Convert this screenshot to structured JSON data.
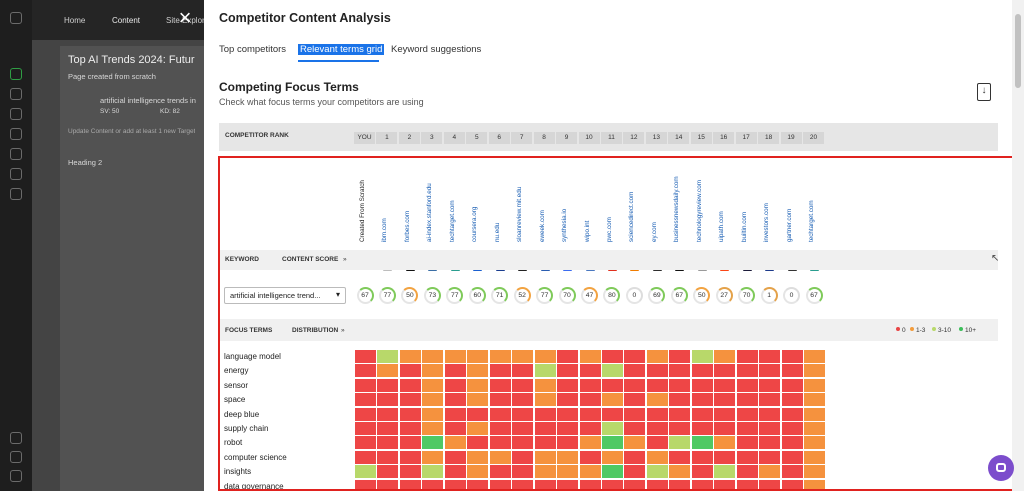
{
  "background": {
    "nav_home": "Home",
    "nav_content": "Content",
    "nav_site": "Site Explor",
    "doc_title": "Top AI Trends 2024: Futur",
    "doc_sub": "Page created from scratch",
    "keyword": "artificial intelligence trends in",
    "sv": "SV: 50",
    "kd": "KD: 82",
    "hint": "Update Content or add at least 1 new Target",
    "heading": "Heading 2"
  },
  "panel": {
    "title": "Competitor Content Analysis",
    "tabs": [
      "Top competitors",
      "Relevant terms grid",
      "Keyword suggestions"
    ],
    "section_title": "Competing Focus Terms",
    "section_sub": "Check what focus terms your competitors are using"
  },
  "rank": {
    "label": "COMPETITOR RANK",
    "cells": [
      "YOU",
      "1",
      "2",
      "3",
      "4",
      "5",
      "6",
      "7",
      "8",
      "9",
      "10",
      "11",
      "12",
      "13",
      "14",
      "15",
      "16",
      "17",
      "18",
      "19",
      "20"
    ]
  },
  "domains": [
    "Created From Scratch",
    "ibm.com",
    "forbes.com",
    "ai-index.stanford.edu",
    "techtarget.com",
    "coursera.org",
    "nu.edu",
    "sloanreview.mit.edu",
    "eweek.com",
    "synthesia.io",
    "wipo.int",
    "pwc.com",
    "sciencedirect.com",
    "ey.com",
    "businessnewsdaily.com",
    "technologyreview.com",
    "uipath.com",
    "builtin.com",
    "investors.com",
    "gartner.com",
    "techtarget.com"
  ],
  "favicons": [
    {
      "icon": "none",
      "color": "#ffffff",
      "glyph": ""
    },
    {
      "icon": "ibm-icon",
      "color": "#bdbdbd",
      "glyph": ""
    },
    {
      "icon": "forbes-icon",
      "color": "#111111",
      "glyph": "F"
    },
    {
      "icon": "stanford-icon",
      "color": "#3a6ea5",
      "glyph": ""
    },
    {
      "icon": "techtarget-icon",
      "color": "#2a9d8f",
      "glyph": ""
    },
    {
      "icon": "coursera-icon",
      "color": "#1a5fd0",
      "glyph": "C"
    },
    {
      "icon": "nu-icon",
      "color": "#1a3d8f",
      "glyph": "nu"
    },
    {
      "icon": "mit-icon",
      "color": "#222222",
      "glyph": ""
    },
    {
      "icon": "eweek-icon",
      "color": "#2a5db0",
      "glyph": ""
    },
    {
      "icon": "synthesia-icon",
      "color": "#3b6cf0",
      "glyph": ""
    },
    {
      "icon": "wipo-icon",
      "color": "#4a78c0",
      "glyph": ""
    },
    {
      "icon": "pwc-icon",
      "color": "#e0301e",
      "glyph": ""
    },
    {
      "icon": "sciencedirect-icon",
      "color": "#f07c00",
      "glyph": "E"
    },
    {
      "icon": "ey-icon",
      "color": "#2e2e2e",
      "glyph": ""
    },
    {
      "icon": "businessnewsdaily-icon",
      "color": "#111111",
      "glyph": ""
    },
    {
      "icon": "technologyreview-icon",
      "color": "#9a9a9a",
      "glyph": ""
    },
    {
      "icon": "uipath-icon",
      "color": "#fa4616",
      "glyph": ""
    },
    {
      "icon": "builtin-icon",
      "color": "#1b1b3a",
      "glyph": ""
    },
    {
      "icon": "investors-icon",
      "color": "#1d3a8a",
      "glyph": ""
    },
    {
      "icon": "gartner-icon",
      "color": "#333333",
      "glyph": "G"
    },
    {
      "icon": "techtarget-icon",
      "color": "#2a9d8f",
      "glyph": ""
    }
  ],
  "keyword_bar": {
    "keyword": "KEYWORD",
    "content_score": "CONTENT SCORE",
    "chevron": "»"
  },
  "keyword_select": "artificial intelligence trend...",
  "scores": [
    67,
    77,
    50,
    73,
    77,
    60,
    71,
    52,
    77,
    70,
    47,
    80,
    0,
    69,
    67,
    50,
    27,
    70,
    1,
    0,
    67
  ],
  "focus_bar": {
    "focus_terms": "FOCUS TERMS",
    "distribution": "DISTRIBUTION",
    "chevron": "»"
  },
  "legend": [
    {
      "label": "0",
      "color": "#e84545"
    },
    {
      "label": "1-3",
      "color": "#f39c3c"
    },
    {
      "label": "3-10",
      "color": "#b8d96a"
    },
    {
      "label": "10+",
      "color": "#3cbf5a"
    }
  ],
  "colors": {
    "0": "#ee4646",
    "1": "#f5923e",
    "2": "#b8d86a",
    "3": "#4fc964"
  },
  "terms": [
    {
      "name": "language model",
      "levels": [
        0,
        2,
        1,
        1,
        1,
        1,
        1,
        1,
        1,
        0,
        1,
        0,
        0,
        1,
        0,
        2,
        1,
        0,
        0,
        0,
        1
      ]
    },
    {
      "name": "energy",
      "levels": [
        0,
        1,
        0,
        1,
        0,
        1,
        0,
        0,
        2,
        0,
        0,
        2,
        0,
        0,
        0,
        0,
        0,
        0,
        0,
        0,
        1
      ]
    },
    {
      "name": "sensor",
      "levels": [
        0,
        0,
        0,
        1,
        0,
        1,
        0,
        0,
        1,
        0,
        0,
        0,
        0,
        0,
        0,
        0,
        0,
        0,
        0,
        0,
        1
      ]
    },
    {
      "name": "space",
      "levels": [
        0,
        0,
        0,
        1,
        0,
        1,
        0,
        0,
        1,
        0,
        0,
        1,
        0,
        1,
        0,
        0,
        0,
        0,
        0,
        0,
        1
      ]
    },
    {
      "name": "deep blue",
      "levels": [
        0,
        0,
        0,
        1,
        0,
        0,
        0,
        0,
        0,
        0,
        0,
        0,
        0,
        0,
        0,
        0,
        0,
        0,
        0,
        0,
        1
      ]
    },
    {
      "name": "supply chain",
      "levels": [
        0,
        0,
        0,
        1,
        0,
        1,
        0,
        0,
        0,
        0,
        0,
        2,
        0,
        0,
        0,
        0,
        0,
        0,
        0,
        0,
        1
      ]
    },
    {
      "name": "robot",
      "levels": [
        0,
        0,
        0,
        3,
        1,
        0,
        0,
        0,
        0,
        0,
        1,
        3,
        1,
        0,
        2,
        3,
        1,
        0,
        0,
        0,
        1
      ]
    },
    {
      "name": "computer science",
      "levels": [
        0,
        0,
        0,
        1,
        0,
        1,
        1,
        0,
        1,
        1,
        0,
        1,
        0,
        1,
        0,
        0,
        0,
        0,
        0,
        0,
        1
      ]
    },
    {
      "name": "insights",
      "levels": [
        2,
        0,
        0,
        2,
        0,
        1,
        0,
        0,
        1,
        1,
        1,
        3,
        0,
        2,
        1,
        0,
        2,
        0,
        1,
        0,
        1
      ]
    },
    {
      "name": "data governance",
      "levels": [
        0,
        0,
        0,
        0,
        0,
        0,
        0,
        0,
        0,
        0,
        0,
        0,
        0,
        0,
        0,
        0,
        0,
        0,
        0,
        0,
        1
      ]
    }
  ]
}
